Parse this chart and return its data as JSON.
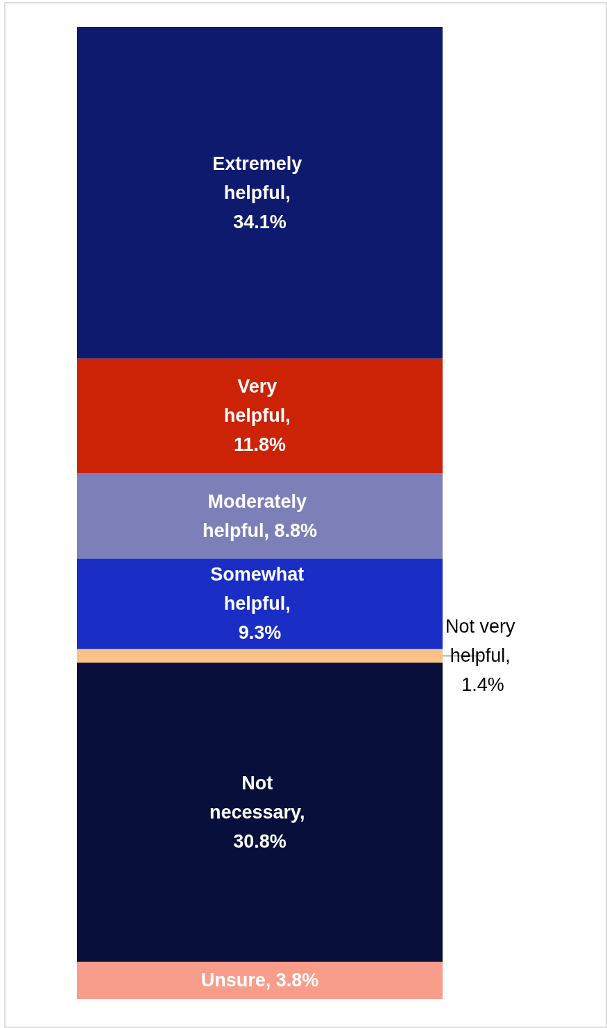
{
  "chart_data": {
    "type": "bar",
    "stacked": true,
    "categories": [
      null
    ],
    "legend": false,
    "series": [
      {
        "name": "Unsure,",
        "color": "#f99d8b",
        "values": [
          3.8
        ],
        "value_labels": [
          "3.8%"
        ]
      },
      {
        "name": "Not necessary,",
        "color": "#070f3a",
        "values": [
          30.8
        ],
        "value_labels": [
          "30.8%"
        ]
      },
      {
        "name": "Not very helpful,",
        "color": "#f8c186",
        "values": [
          1.4
        ],
        "value_labels": [
          "1.4%"
        ]
      },
      {
        "name": "Somewhat helpful,",
        "color": "#1a2dc4",
        "values": [
          9.3
        ],
        "value_labels": [
          "9.3%"
        ]
      },
      {
        "name": "Moderately helpful,",
        "color": "#7d80b8",
        "values": [
          8.8
        ],
        "value_labels": [
          "8.8%"
        ]
      },
      {
        "name": "Very helpful,",
        "color": "#cc2206",
        "values": [
          11.8
        ],
        "value_labels": [
          "11.8%"
        ]
      },
      {
        "name": "Extremely helpful,",
        "color": "#0e1a6e",
        "values": [
          34.1
        ],
        "value_labels": [
          "34.1%"
        ]
      }
    ]
  }
}
